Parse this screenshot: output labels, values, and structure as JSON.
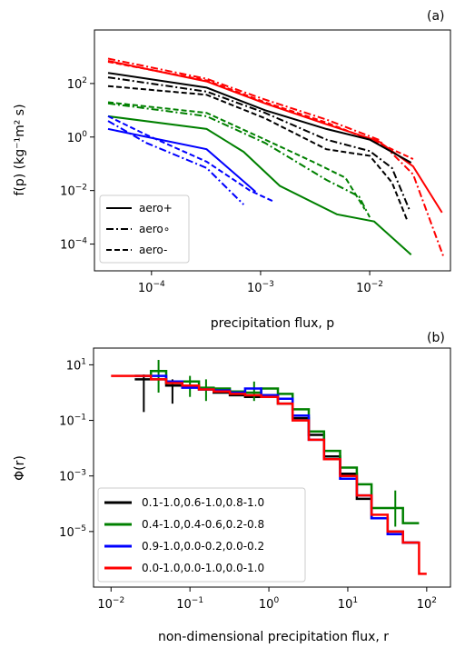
{
  "colors": {
    "black": "#000000",
    "green": "#008000",
    "blue": "#0000ff",
    "red": "#ff0000"
  },
  "chart_data": [
    {
      "type": "line",
      "panel_label": "(a)",
      "xlabel": "precipitation flux, p",
      "ylabel": "f(p) (kg⁻¹m² s)",
      "xscale": "log",
      "yscale": "log",
      "xlim": [
        3e-05,
        0.055
      ],
      "ylim": [
        1e-05,
        10000
      ],
      "xticks": [
        {
          "v": 0.0001,
          "base": "10",
          "exp": "−4"
        },
        {
          "v": 0.001,
          "base": "10",
          "exp": "−3"
        },
        {
          "v": 0.01,
          "base": "10",
          "exp": "−2"
        }
      ],
      "yticks": [
        {
          "v": 0.0001,
          "base": "10",
          "exp": "−4"
        },
        {
          "v": 0.01,
          "base": "10",
          "exp": "−2"
        },
        {
          "v": 1,
          "base": "10",
          "exp": "0"
        },
        {
          "v": 100,
          "base": "10",
          "exp": "2"
        }
      ],
      "legend": {
        "placement": "lower-left",
        "entries": [
          {
            "label": "aero+",
            "style": "solid"
          },
          {
            "label": "aero∘",
            "style": "dashdot"
          },
          {
            "label": "aero-",
            "style": "dashed"
          }
        ]
      },
      "series": [
        {
          "color": "red",
          "style": "solid",
          "x": [
            4e-05,
            0.00032,
            0.0011,
            0.004,
            0.012,
            0.025,
            0.046
          ],
          "y": [
            700,
            120,
            18,
            3,
            0.7,
            0.08,
            0.0015
          ]
        },
        {
          "color": "red",
          "style": "dashdot",
          "x": [
            4e-05,
            0.00032,
            0.0011,
            0.004,
            0.012,
            0.025,
            0.048
          ],
          "y": [
            850,
            150,
            25,
            4.5,
            0.8,
            0.04,
            3e-05
          ]
        },
        {
          "color": "red",
          "style": "dashed",
          "x": [
            4e-05,
            0.00032,
            0.0011,
            0.004,
            0.012,
            0.025
          ],
          "y": [
            650,
            130,
            20,
            3.5,
            0.6,
            0.15
          ]
        },
        {
          "color": "black",
          "style": "solid",
          "x": [
            4e-05,
            0.00032,
            0.0011,
            0.004,
            0.01,
            0.024
          ],
          "y": [
            250,
            70,
            10,
            2,
            0.8,
            0.11
          ]
        },
        {
          "color": "black",
          "style": "dashdot",
          "x": [
            4e-05,
            0.00032,
            0.0011,
            0.004,
            0.01,
            0.016,
            0.023
          ],
          "y": [
            170,
            50,
            8,
            0.8,
            0.3,
            0.07,
            0.002
          ]
        },
        {
          "color": "black",
          "style": "dashed",
          "x": [
            4e-05,
            0.00032,
            0.0011,
            0.004,
            0.01,
            0.016,
            0.022
          ],
          "y": [
            80,
            38,
            5,
            0.35,
            0.2,
            0.02,
            0.0008
          ]
        },
        {
          "color": "green",
          "style": "solid",
          "x": [
            4e-05,
            0.00032,
            0.0007,
            0.0015,
            0.005,
            0.011,
            0.024
          ],
          "y": [
            6,
            2,
            0.28,
            0.015,
            0.0013,
            0.0007,
            4e-05
          ]
        },
        {
          "color": "green",
          "style": "dashdot",
          "x": [
            4e-05,
            0.00032,
            0.0011,
            0.004,
            0.008,
            0.01
          ],
          "y": [
            18,
            6,
            0.6,
            0.025,
            0.006,
            0.001
          ]
        },
        {
          "color": "green",
          "style": "dashed",
          "x": [
            4e-05,
            0.00032,
            0.0011,
            0.003,
            0.006,
            0.009
          ],
          "y": [
            20,
            8,
            0.8,
            0.12,
            0.03,
            0.002
          ]
        },
        {
          "color": "blue",
          "style": "solid",
          "x": [
            4e-05,
            0.00032,
            0.0009
          ],
          "y": [
            2,
            0.35,
            0.009
          ]
        },
        {
          "color": "blue",
          "style": "dashdot",
          "x": [
            4e-05,
            9e-05,
            0.00032,
            0.0007
          ],
          "y": [
            4,
            0.6,
            0.07,
            0.003
          ]
        },
        {
          "color": "blue",
          "style": "dashed",
          "x": [
            4e-05,
            9e-05,
            0.00032,
            0.0008,
            0.0013
          ],
          "y": [
            6,
            1.2,
            0.12,
            0.01,
            0.004
          ]
        }
      ]
    },
    {
      "type": "line",
      "panel_label": "(b)",
      "xlabel": "non-dimensional precipitation flux, r",
      "ylabel": "Φ(r)",
      "xscale": "log",
      "yscale": "log",
      "xlim": [
        0.006,
        200
      ],
      "ylim": [
        1e-07,
        40
      ],
      "step": true,
      "xticks": [
        {
          "v": 0.01,
          "base": "10",
          "exp": "−2"
        },
        {
          "v": 0.1,
          "base": "10",
          "exp": "−1"
        },
        {
          "v": 1,
          "base": "10",
          "exp": "0"
        },
        {
          "v": 10,
          "base": "10",
          "exp": "1"
        },
        {
          "v": 100,
          "base": "10",
          "exp": "2"
        }
      ],
      "yticks": [
        {
          "v": 1e-05,
          "base": "10",
          "exp": "−5"
        },
        {
          "v": 0.001,
          "base": "10",
          "exp": "−3"
        },
        {
          "v": 0.1,
          "base": "10",
          "exp": "−1"
        },
        {
          "v": 10,
          "base": "10",
          "exp": "1"
        }
      ],
      "legend": {
        "placement": "lower-left"
      },
      "series": [
        {
          "name": "0.1-1.0,0.6-1.0,0.8-1.0",
          "color": "black",
          "edges": [
            0.02,
            0.032,
            0.05,
            0.08,
            0.13,
            0.2,
            0.32,
            0.5,
            0.8,
            1.3,
            2,
            3.2,
            5,
            8,
            13,
            20,
            32,
            50,
            80
          ],
          "values": [
            3,
            3,
            1.8,
            1.8,
            1.3,
            1.0,
            0.8,
            0.7,
            0.8,
            0.4,
            0.12,
            0.03,
            0.005,
            0.0012,
            0.00015,
            3e-05,
            1e-05,
            4e-06
          ],
          "errbars": [
            {
              "x": 0.026,
              "lo": 0.2,
              "hi": 4.5
            },
            {
              "x": 0.06,
              "lo": 0.4,
              "hi": 3
            }
          ]
        },
        {
          "name": "0.4-1.0,0.4-0.6,0.2-0.8",
          "color": "green",
          "edges": [
            0.02,
            0.032,
            0.05,
            0.08,
            0.13,
            0.2,
            0.32,
            0.5,
            0.8,
            1.3,
            2,
            3.2,
            5,
            8,
            13,
            20,
            32,
            50,
            80
          ],
          "values": [
            4,
            6,
            2.2,
            2.5,
            1.5,
            1.4,
            1.1,
            1.0,
            1.4,
            0.9,
            0.25,
            0.04,
            0.008,
            0.002,
            0.0005,
            7e-05,
            7e-05,
            2e-05
          ],
          "errbars": [
            {
              "x": 0.04,
              "lo": 1,
              "hi": 15
            },
            {
              "x": 0.1,
              "lo": 0.7,
              "hi": 4
            },
            {
              "x": 0.16,
              "lo": 0.5,
              "hi": 3
            },
            {
              "x": 0.65,
              "lo": 0.5,
              "hi": 2.5
            },
            {
              "x": 40,
              "lo": 1.5e-05,
              "hi": 0.0003
            }
          ]
        },
        {
          "name": "0.9-1.0,0.0-0.2,0.0-0.2",
          "color": "blue",
          "edges": [
            0.02,
            0.032,
            0.05,
            0.08,
            0.13,
            0.2,
            0.32,
            0.5,
            0.8,
            1.3,
            2,
            3.2,
            5,
            8,
            13,
            20,
            32,
            50,
            80
          ],
          "values": [
            4,
            4,
            2.5,
            1.5,
            1.3,
            1.2,
            1.0,
            1.4,
            0.8,
            0.6,
            0.15,
            0.02,
            0.004,
            0.0008,
            0.0002,
            3e-05,
            8e-06,
            4e-06
          ],
          "errbars": []
        },
        {
          "name": "0.0-1.0,0.0-1.0,0.0-1.0",
          "color": "red",
          "edges": [
            0.01,
            0.02,
            0.032,
            0.05,
            0.08,
            0.13,
            0.2,
            0.32,
            0.5,
            0.8,
            1.3,
            2,
            3.2,
            5,
            8,
            13,
            20,
            32,
            50,
            80,
            100
          ],
          "values": [
            4,
            4,
            3,
            2.2,
            1.8,
            1.3,
            1.1,
            0.9,
            0.8,
            0.7,
            0.4,
            0.1,
            0.02,
            0.004,
            0.001,
            0.0002,
            4e-05,
            1e-05,
            4e-06,
            3e-07
          ],
          "errbars": []
        }
      ]
    }
  ]
}
